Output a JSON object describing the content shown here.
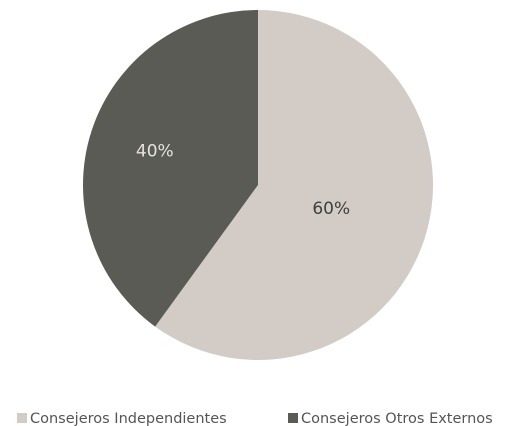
{
  "chart_data": {
    "type": "pie",
    "categories": [
      "Consejeros Independientes",
      "Consejeros Otros Externos"
    ],
    "values": [
      60,
      40
    ],
    "value_labels": [
      "60%",
      "40%"
    ],
    "colors": [
      "#d3ccc6",
      "#5b5b56"
    ],
    "legend": "bottom"
  }
}
